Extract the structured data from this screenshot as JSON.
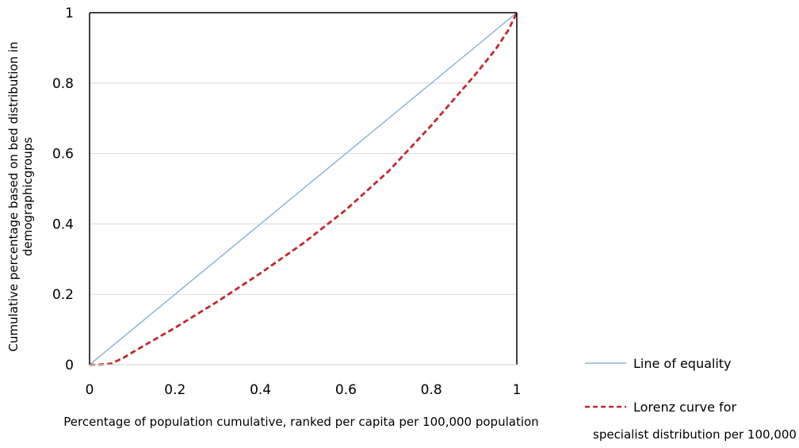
{
  "chart_data": {
    "type": "line",
    "xlabel": "Percentage of population cumulative, ranked per capita per 100,000 population",
    "ylabel_lines": [
      "Cumulative percentage  based on bed distribution in",
      "demographicgroups"
    ],
    "xlim": [
      0,
      1
    ],
    "ylim": [
      0,
      1
    ],
    "x_ticks": [
      "0",
      "0.2",
      "0.4",
      "0.6",
      "0.8",
      "1"
    ],
    "y_ticks": [
      "0",
      "0.2",
      "0.4",
      "0.6",
      "0.8",
      "1"
    ],
    "grid": "horizontal",
    "legend_position": "right-bottom",
    "series": [
      {
        "name": "Line of equality",
        "color": "#8eb4dc",
        "style": "solid",
        "x": [
          0,
          1
        ],
        "y": [
          0,
          1
        ]
      },
      {
        "name": "Lorenz curve for",
        "name_line2": "specialist distribution per 100,000",
        "color": "#c0282d",
        "style": "dashed",
        "x": [
          0,
          0.02,
          0.05,
          0.08,
          0.1,
          0.15,
          0.2,
          0.3,
          0.4,
          0.5,
          0.6,
          0.7,
          0.8,
          0.85,
          0.9,
          0.95,
          0.98,
          1.0
        ],
        "y": [
          0,
          0,
          0.003,
          0.02,
          0.035,
          0.07,
          0.105,
          0.18,
          0.26,
          0.345,
          0.44,
          0.55,
          0.68,
          0.75,
          0.82,
          0.895,
          0.95,
          1.0
        ]
      }
    ]
  }
}
